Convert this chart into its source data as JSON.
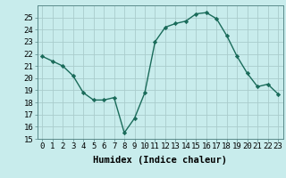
{
  "title": "",
  "xlabel": "Humidex (Indice chaleur)",
  "x": [
    0,
    1,
    2,
    3,
    4,
    5,
    6,
    7,
    8,
    9,
    10,
    11,
    12,
    13,
    14,
    15,
    16,
    17,
    18,
    19,
    20,
    21,
    22,
    23
  ],
  "y": [
    21.8,
    21.4,
    21.0,
    20.2,
    18.8,
    18.2,
    18.2,
    18.4,
    15.5,
    16.7,
    18.8,
    23.0,
    24.2,
    24.5,
    24.7,
    25.3,
    25.4,
    24.9,
    23.5,
    21.8,
    20.4,
    19.3,
    19.5,
    18.7
  ],
  "line_color": "#1a6b5a",
  "marker": "D",
  "marker_size": 2.2,
  "background_color": "#c8ecec",
  "grid_color": "#aacccc",
  "ylim": [
    15,
    26
  ],
  "yticks": [
    15,
    16,
    17,
    18,
    19,
    20,
    21,
    22,
    23,
    24,
    25
  ],
  "xlim": [
    -0.5,
    23.5
  ],
  "tick_fontsize": 6.5,
  "label_fontsize": 7.5,
  "line_width": 1.0
}
